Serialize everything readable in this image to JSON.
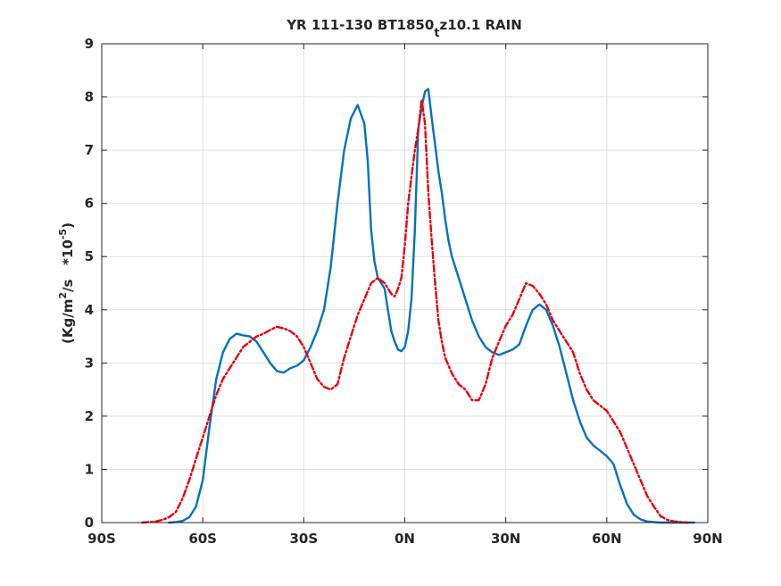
{
  "chart_data": {
    "type": "line",
    "title_main": "YR 111-130 BT1850",
    "title_sub": "t",
    "title_end": "z10.1 RAIN",
    "ylabel_start": "(Kg/m",
    "ylabel_sup1": "2",
    "ylabel_mid": "/s   *10",
    "ylabel_sup2": "-5",
    "ylabel_end": ")",
    "xlim": [
      -90,
      90
    ],
    "ylim": [
      0,
      9
    ],
    "x_ticks": [
      {
        "value": -90,
        "label": "90S"
      },
      {
        "value": -60,
        "label": "60S"
      },
      {
        "value": -30,
        "label": "30S"
      },
      {
        "value": 0,
        "label": "0N"
      },
      {
        "value": 30,
        "label": "30N"
      },
      {
        "value": 60,
        "label": "60N"
      },
      {
        "value": 90,
        "label": "90N"
      }
    ],
    "y_ticks": [
      {
        "value": 0,
        "label": "0"
      },
      {
        "value": 1,
        "label": "1"
      },
      {
        "value": 2,
        "label": "2"
      },
      {
        "value": 3,
        "label": "3"
      },
      {
        "value": 4,
        "label": "4"
      },
      {
        "value": 5,
        "label": "5"
      },
      {
        "value": 6,
        "label": "6"
      },
      {
        "value": 7,
        "label": "7"
      },
      {
        "value": 8,
        "label": "8"
      },
      {
        "value": 9,
        "label": "9"
      }
    ],
    "grid": true,
    "series": [
      {
        "color": "#0072bd",
        "style": "solid",
        "x": [
          -70,
          -68,
          -66,
          -64,
          -62,
          -60,
          -58,
          -56,
          -54,
          -52,
          -50,
          -48,
          -46,
          -44,
          -42,
          -40,
          -38,
          -36,
          -34,
          -32,
          -30,
          -28,
          -26,
          -24,
          -22,
          -20,
          -18,
          -16,
          -14,
          -12,
          -11,
          -10,
          -9,
          -8,
          -6,
          -5,
          -4,
          -3,
          -2,
          -1,
          0,
          1,
          2,
          3,
          4,
          5,
          6,
          7,
          8,
          9,
          10,
          11,
          12,
          13,
          14,
          15,
          16,
          18,
          20,
          22,
          24,
          26,
          28,
          30,
          32,
          34,
          36,
          38,
          40,
          42,
          44,
          46,
          48,
          50,
          52,
          54,
          56,
          58,
          60,
          62,
          64,
          66,
          68,
          70,
          72,
          74,
          76,
          78,
          80,
          82,
          84,
          86
        ],
        "y": [
          0.0,
          0.01,
          0.03,
          0.1,
          0.3,
          0.8,
          1.8,
          2.7,
          3.2,
          3.45,
          3.55,
          3.52,
          3.5,
          3.4,
          3.2,
          3.0,
          2.85,
          2.82,
          2.9,
          2.95,
          3.05,
          3.3,
          3.6,
          4.0,
          4.8,
          6.0,
          7.0,
          7.6,
          7.85,
          7.5,
          6.8,
          5.5,
          4.9,
          4.6,
          4.4,
          4.0,
          3.6,
          3.4,
          3.25,
          3.22,
          3.3,
          3.6,
          4.2,
          5.5,
          7.4,
          7.8,
          8.1,
          8.15,
          7.6,
          7.1,
          6.6,
          6.2,
          5.7,
          5.3,
          5.0,
          4.8,
          4.6,
          4.2,
          3.8,
          3.5,
          3.3,
          3.2,
          3.15,
          3.2,
          3.25,
          3.35,
          3.7,
          4.0,
          4.1,
          4.0,
          3.7,
          3.3,
          2.8,
          2.3,
          1.9,
          1.6,
          1.45,
          1.35,
          1.25,
          1.1,
          0.7,
          0.35,
          0.15,
          0.06,
          0.02,
          0.01,
          0.0,
          0.0,
          0.0,
          0.0,
          0.0,
          0.0
        ]
      },
      {
        "color": "#e8000b",
        "style": "dashed",
        "x": [
          -78,
          -76,
          -74,
          -72,
          -70,
          -68,
          -66,
          -64,
          -62,
          -60,
          -58,
          -56,
          -54,
          -52,
          -50,
          -48,
          -46,
          -44,
          -42,
          -40,
          -38,
          -36,
          -34,
          -32,
          -30,
          -28,
          -26,
          -24,
          -22,
          -20,
          -18,
          -16,
          -14,
          -12,
          -10,
          -8,
          -6,
          -4,
          -3,
          -2,
          -1,
          0,
          1,
          2,
          3,
          4,
          5,
          6,
          7,
          8,
          9,
          10,
          11,
          12,
          14,
          16,
          18,
          20,
          22,
          24,
          26,
          28,
          30,
          32,
          34,
          36,
          38,
          40,
          42,
          44,
          46,
          48,
          50,
          52,
          54,
          56,
          58,
          60,
          62,
          64,
          66,
          68,
          70,
          72,
          74,
          76,
          78,
          80,
          82,
          84
        ],
        "y": [
          0.0,
          0.01,
          0.02,
          0.05,
          0.1,
          0.2,
          0.45,
          0.8,
          1.2,
          1.6,
          2.0,
          2.4,
          2.7,
          2.9,
          3.1,
          3.3,
          3.4,
          3.5,
          3.55,
          3.62,
          3.68,
          3.65,
          3.6,
          3.5,
          3.3,
          3.0,
          2.7,
          2.55,
          2.5,
          2.6,
          3.1,
          3.5,
          3.9,
          4.2,
          4.5,
          4.6,
          4.5,
          4.3,
          4.25,
          4.4,
          4.6,
          5.2,
          6.0,
          6.5,
          7.0,
          7.4,
          7.95,
          7.5,
          6.2,
          5.3,
          4.5,
          3.8,
          3.4,
          3.1,
          2.8,
          2.6,
          2.5,
          2.3,
          2.3,
          2.6,
          3.1,
          3.4,
          3.7,
          3.9,
          4.2,
          4.5,
          4.45,
          4.3,
          4.1,
          3.8,
          3.6,
          3.4,
          3.2,
          2.8,
          2.5,
          2.3,
          2.2,
          2.1,
          1.9,
          1.7,
          1.4,
          1.1,
          0.8,
          0.5,
          0.3,
          0.12,
          0.05,
          0.02,
          0.01,
          0.0
        ]
      }
    ]
  }
}
